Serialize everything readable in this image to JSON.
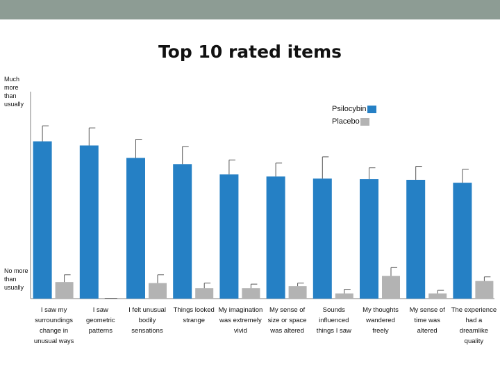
{
  "colors": {
    "psilocybin": "#2580c5",
    "placebo": "#b3b3b3",
    "topbar": "#8d9c94"
  },
  "chart_data": {
    "type": "bar",
    "title": "Top 10 rated items",
    "y_top_label": "Much more than usually",
    "y_bottom_label": "No more than usually",
    "ylim": [
      0,
      1
    ],
    "legend_position": "top-right",
    "categories": [
      "I saw my surroundings change in unusual ways",
      "I saw geometric patterns",
      "I felt unusual bodily sensations",
      "Things looked strange",
      "My imagination was extremely vivid",
      "My sense of size or space was altered",
      "Sounds influenced things I saw",
      "My thoughts wandered freely",
      "My sense of time was altered",
      "The experience had a dreamlike quality"
    ],
    "series": [
      {
        "name": "Psilocybin",
        "color": "#2580c5",
        "values": [
          0.76,
          0.74,
          0.68,
          0.65,
          0.6,
          0.59,
          0.58,
          0.577,
          0.574,
          0.56
        ],
        "error": [
          0.075,
          0.085,
          0.09,
          0.085,
          0.07,
          0.065,
          0.105,
          0.055,
          0.065,
          0.065
        ]
      },
      {
        "name": "Placebo",
        "color": "#b3b3b3",
        "values": [
          0.08,
          0.0,
          0.075,
          0.05,
          0.05,
          0.06,
          0.025,
          0.11,
          0.025,
          0.085
        ],
        "error": [
          0.035,
          0.0,
          0.04,
          0.025,
          0.02,
          0.015,
          0.02,
          0.04,
          0.015,
          0.02
        ]
      }
    ]
  }
}
